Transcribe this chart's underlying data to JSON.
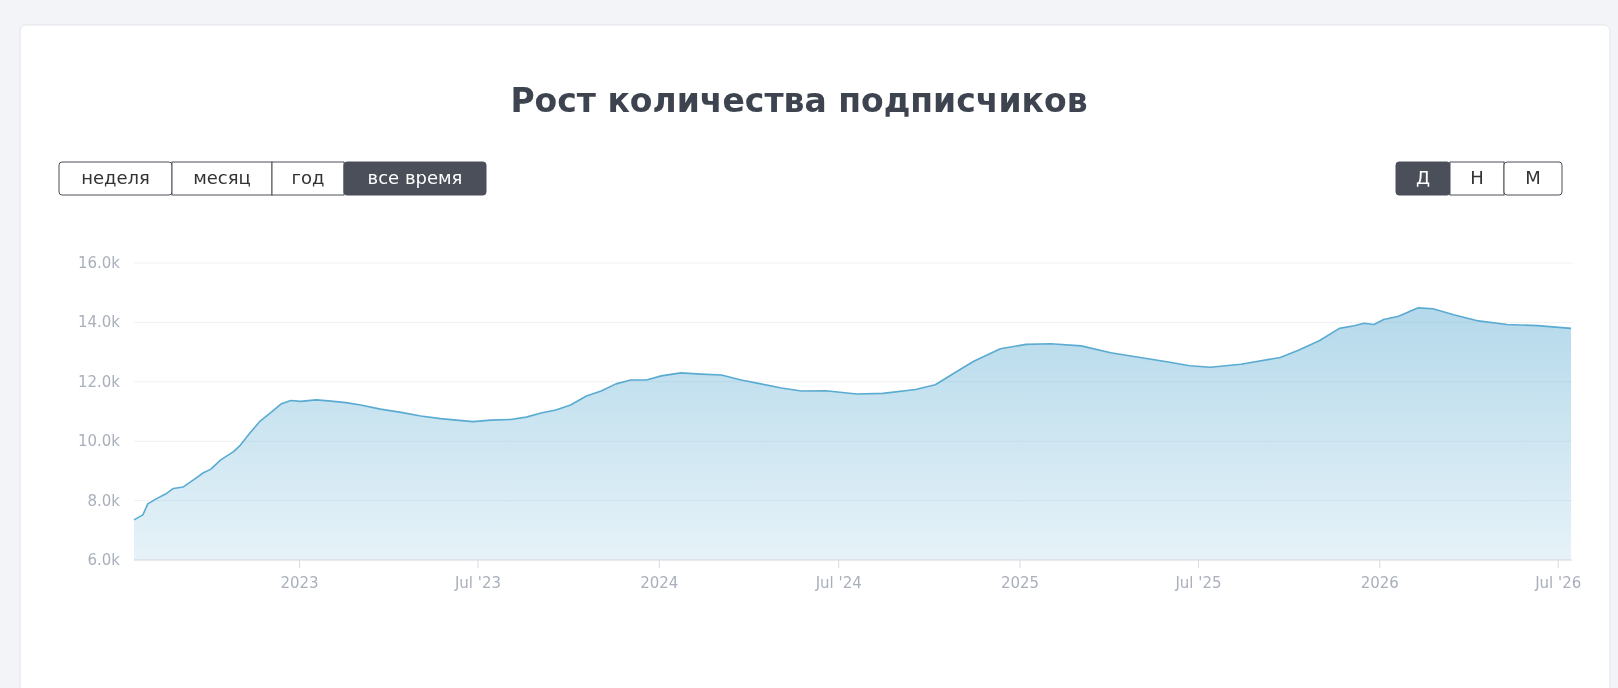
{
  "chart_data": {
    "type": "area",
    "title": "Рост количества подписчиков",
    "annotations": [
      "неделя",
      "месяц",
      "год",
      "все время",
      "Д",
      "Н",
      "М"
    ],
    "x": [
      "2022-07-17",
      "2022-07-26",
      "2022-07-31",
      "2022-08-08",
      "2022-08-18",
      "2022-08-26",
      "2022-09-05",
      "2022-09-15",
      "2022-09-25",
      "2022-10-03",
      "2022-10-13",
      "2022-10-26",
      "2022-11-02",
      "2022-11-12",
      "2022-11-22",
      "2022-12-03",
      "2022-12-13",
      "2022-12-23",
      "2023-01-02",
      "2023-01-18",
      "2023-02-02",
      "2023-02-17",
      "2023-03-04",
      "2023-03-24",
      "2023-04-14",
      "2023-05-04",
      "2023-05-24",
      "2023-06-09",
      "2023-06-26",
      "2023-07-14",
      "2023-08-03",
      "2023-08-19",
      "2023-09-03",
      "2023-09-18",
      "2023-10-03",
      "2023-10-19",
      "2023-11-03",
      "2023-11-18",
      "2023-12-03",
      "2023-12-19",
      "2024-01-03",
      "2024-01-23",
      "2024-02-12",
      "2024-03-04",
      "2024-03-24",
      "2024-04-13",
      "2024-05-04",
      "2024-05-24",
      "2024-06-18",
      "2024-07-19",
      "2024-08-15",
      "2024-09-17",
      "2024-10-07",
      "2024-10-28",
      "2024-11-15",
      "2024-12-12",
      "2025-01-07",
      "2025-02-01",
      "2025-03-04",
      "2025-04-03",
      "2025-05-03",
      "2025-06-02",
      "2025-06-22",
      "2025-07-13",
      "2025-08-13",
      "2025-09-22",
      "2025-10-11",
      "2025-11-01",
      "2025-11-21",
      "2025-12-06",
      "2025-12-16",
      "2025-12-26",
      "2026-01-05",
      "2026-01-20",
      "2026-02-09",
      "2026-02-24",
      "2026-03-17",
      "2026-04-11",
      "2026-05-10",
      "2026-06-10",
      "2026-07-14"
    ],
    "series": [
      {
        "color": "#5aabd2",
        "values": [
          7350,
          7520,
          7890,
          8050,
          8220,
          8410,
          8460,
          8690,
          8930,
          9060,
          9370,
          9650,
          9870,
          10290,
          10680,
          10970,
          11250,
          11370,
          11340,
          11390,
          11350,
          11300,
          11220,
          11080,
          10970,
          10850,
          10760,
          10710,
          10660,
          10710,
          10730,
          10810,
          10950,
          11050,
          11220,
          11520,
          11690,
          11930,
          12060,
          12060,
          12200,
          12300,
          12260,
          12230,
          12060,
          11930,
          11790,
          11690,
          11700,
          11590,
          11610,
          11740,
          11900,
          12330,
          12690,
          13110,
          13260,
          13280,
          13210,
          12980,
          12820,
          12660,
          12540,
          12490,
          12590,
          12820,
          13070,
          13390,
          13800,
          13890,
          13970,
          13930,
          14100,
          14210,
          14490,
          14460,
          14260,
          14050,
          13930,
          13890,
          13800
        ]
      }
    ],
    "xlim": [
      "2022-07-17",
      "2026-07-15"
    ],
    "xticks": [
      {
        "value": "2023-01-01",
        "label": "2023"
      },
      {
        "value": "2023-07-01",
        "label": "Jul '23"
      },
      {
        "value": "2024-01-01",
        "label": "2024"
      },
      {
        "value": "2024-07-01",
        "label": "Jul '24"
      },
      {
        "value": "2025-01-01",
        "label": "2025"
      },
      {
        "value": "2025-07-01",
        "label": "Jul '25"
      },
      {
        "value": "2026-01-01",
        "label": "2026"
      },
      {
        "value": "2026-07-01",
        "label": "Jul '26"
      }
    ],
    "ylim": [
      6000,
      16000
    ],
    "yticks": [
      {
        "value": 6000,
        "label": "6.0k"
      },
      {
        "value": 8000,
        "label": "8.0k"
      },
      {
        "value": 10000,
        "label": "10.0k"
      },
      {
        "value": 12000,
        "label": "12.0k"
      },
      {
        "value": 14000,
        "label": "14.0k"
      },
      {
        "value": 16000,
        "label": "16.0k"
      }
    ],
    "grid": "y"
  }
}
